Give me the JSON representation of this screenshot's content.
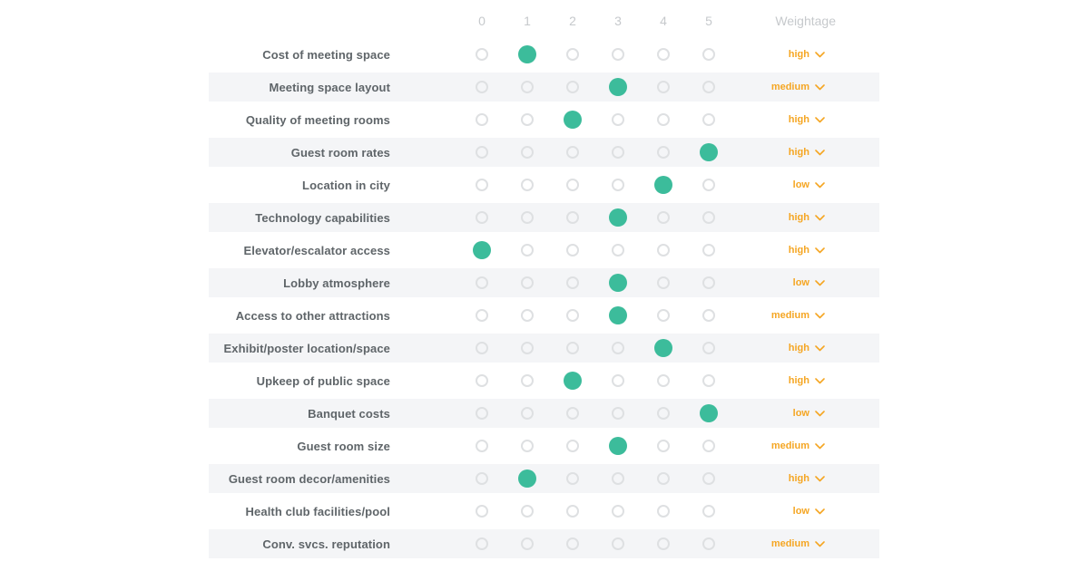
{
  "table": {
    "scale_headers": [
      "0",
      "1",
      "2",
      "3",
      "4",
      "5"
    ],
    "weightage_header": "Weightage",
    "rows": [
      {
        "label": "Cost of meeting space",
        "selected": 1,
        "weightage": "high"
      },
      {
        "label": "Meeting space layout",
        "selected": 3,
        "weightage": "medium"
      },
      {
        "label": "Quality of meeting rooms",
        "selected": 2,
        "weightage": "high"
      },
      {
        "label": "Guest room rates",
        "selected": 5,
        "weightage": "high"
      },
      {
        "label": "Location in city",
        "selected": 4,
        "weightage": "low"
      },
      {
        "label": "Technology capabilities",
        "selected": 3,
        "weightage": "high"
      },
      {
        "label": "Elevator/escalator access",
        "selected": 0,
        "weightage": "high"
      },
      {
        "label": "Lobby atmosphere",
        "selected": 3,
        "weightage": "low"
      },
      {
        "label": "Access to other attractions",
        "selected": 3,
        "weightage": "medium"
      },
      {
        "label": "Exhibit/poster location/space",
        "selected": 4,
        "weightage": "high"
      },
      {
        "label": "Upkeep of public space",
        "selected": 2,
        "weightage": "high"
      },
      {
        "label": "Banquet costs",
        "selected": 5,
        "weightage": "low"
      },
      {
        "label": "Guest room size",
        "selected": 3,
        "weightage": "medium"
      },
      {
        "label": "Guest room decor/amenities",
        "selected": 1,
        "weightage": "high"
      },
      {
        "label": "Health club facilities/pool",
        "selected": null,
        "weightage": "low"
      },
      {
        "label": "Conv. svcs. reputation",
        "selected": null,
        "weightage": "medium"
      }
    ],
    "colors": {
      "selected_radio": "#3cbc9b",
      "radio_ring": "#dee0e2",
      "weightage_text": "#f5a623",
      "label_text": "#5f6569",
      "header_text": "#c6c9cc",
      "stripe_band": "#f4f5f7"
    }
  }
}
